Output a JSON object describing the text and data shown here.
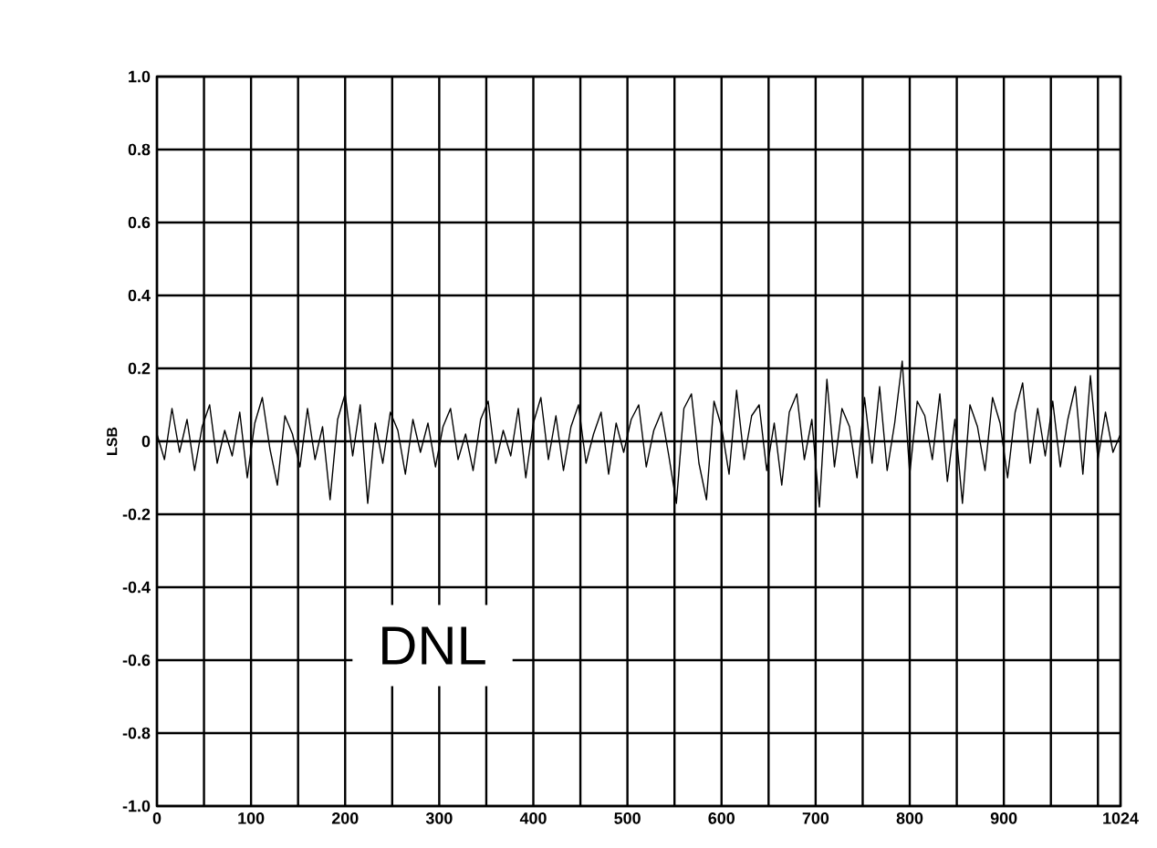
{
  "chart_data": {
    "type": "line",
    "ylabel": "LSB",
    "annotations": [
      "DNL"
    ],
    "grid": true,
    "marker": "none",
    "line_style": "solid",
    "xlim": [
      0,
      1024
    ],
    "ylim": [
      -1.0,
      1.0
    ],
    "xticks": [
      0,
      {
        "value": 50,
        "label": null
      },
      100,
      {
        "value": 150,
        "label": null
      },
      200,
      {
        "value": 250,
        "label": null
      },
      300,
      {
        "value": 350,
        "label": null
      },
      400,
      {
        "value": 450,
        "label": null
      },
      500,
      {
        "value": 550,
        "label": null
      },
      600,
      {
        "value": 650,
        "label": null
      },
      700,
      {
        "value": 750,
        "label": null
      },
      800,
      {
        "value": 850,
        "label": null
      },
      900,
      {
        "value": 950,
        "label": null
      },
      {
        "value": 1000,
        "label": null
      },
      1024
    ],
    "yticks": [
      {
        "value": -1.0,
        "label": "-1.0"
      },
      {
        "value": -0.8,
        "label": "-0.8"
      },
      {
        "value": -0.6,
        "label": "-0.6"
      },
      {
        "value": -0.4,
        "label": "-0.4"
      },
      {
        "value": -0.2,
        "label": "-0.2"
      },
      0,
      {
        "value": 0.2,
        "label": "0.2"
      },
      {
        "value": 0.4,
        "label": "0.4"
      },
      {
        "value": 0.6,
        "label": "0.6"
      },
      {
        "value": 0.8,
        "label": "0.8"
      },
      {
        "value": 1.0,
        "label": "1.0"
      }
    ],
    "series": [
      {
        "color": "#000000",
        "x": [
          0,
          8,
          16,
          24,
          32,
          40,
          48,
          56,
          64,
          72,
          80,
          88,
          96,
          104,
          112,
          120,
          128,
          136,
          144,
          152,
          160,
          168,
          176,
          184,
          192,
          200,
          208,
          216,
          224,
          232,
          240,
          248,
          256,
          264,
          272,
          280,
          288,
          296,
          304,
          312,
          320,
          328,
          336,
          344,
          352,
          360,
          368,
          376,
          384,
          392,
          400,
          408,
          416,
          424,
          432,
          440,
          448,
          456,
          464,
          472,
          480,
          488,
          496,
          504,
          512,
          520,
          528,
          536,
          544,
          552,
          560,
          568,
          576,
          584,
          592,
          600,
          608,
          616,
          624,
          632,
          640,
          648,
          656,
          664,
          672,
          680,
          688,
          696,
          704,
          712,
          720,
          728,
          736,
          744,
          752,
          760,
          768,
          776,
          784,
          792,
          800,
          808,
          816,
          824,
          832,
          840,
          848,
          856,
          864,
          872,
          880,
          888,
          896,
          904,
          912,
          920,
          928,
          936,
          944,
          952,
          960,
          968,
          976,
          984,
          992,
          1000,
          1008,
          1016,
          1024
        ],
        "values": [
          0.02,
          -0.05,
          0.09,
          -0.03,
          0.06,
          -0.08,
          0.04,
          0.1,
          -0.06,
          0.03,
          -0.04,
          0.08,
          -0.1,
          0.05,
          0.12,
          -0.02,
          -0.12,
          0.07,
          0.02,
          -0.07,
          0.09,
          -0.05,
          0.04,
          -0.16,
          0.06,
          0.13,
          -0.04,
          0.1,
          -0.17,
          0.05,
          -0.06,
          0.08,
          0.03,
          -0.09,
          0.06,
          -0.03,
          0.05,
          -0.07,
          0.04,
          0.09,
          -0.05,
          0.02,
          -0.08,
          0.06,
          0.11,
          -0.06,
          0.03,
          -0.04,
          0.09,
          -0.1,
          0.05,
          0.12,
          -0.05,
          0.07,
          -0.08,
          0.04,
          0.1,
          -0.06,
          0.02,
          0.08,
          -0.09,
          0.05,
          -0.03,
          0.06,
          0.1,
          -0.07,
          0.03,
          0.08,
          -0.04,
          -0.17,
          0.09,
          0.13,
          -0.06,
          -0.16,
          0.11,
          0.04,
          -0.09,
          0.14,
          -0.05,
          0.07,
          0.1,
          -0.08,
          0.05,
          -0.12,
          0.08,
          0.13,
          -0.05,
          0.06,
          -0.18,
          0.17,
          -0.07,
          0.09,
          0.04,
          -0.1,
          0.12,
          -0.06,
          0.15,
          -0.08,
          0.05,
          0.22,
          -0.09,
          0.11,
          0.07,
          -0.05,
          0.13,
          -0.11,
          0.06,
          -0.17,
          0.1,
          0.04,
          -0.08,
          0.12,
          0.05,
          -0.1,
          0.08,
          0.16,
          -0.06,
          0.09,
          -0.04,
          0.11,
          -0.07,
          0.06,
          0.15,
          -0.09,
          0.18,
          -0.05,
          0.08,
          -0.03,
          0.02
        ]
      }
    ]
  }
}
